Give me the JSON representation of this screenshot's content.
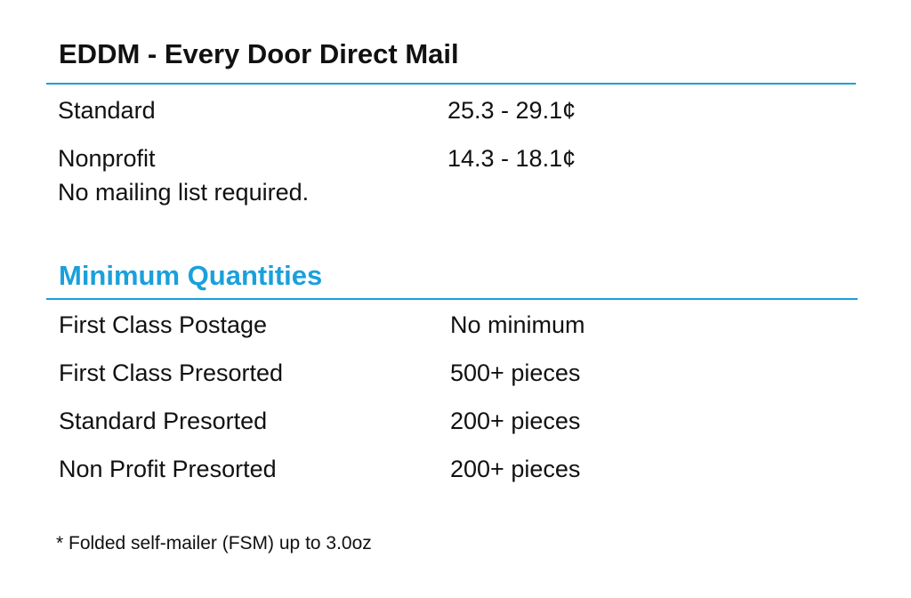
{
  "eddm": {
    "title": "EDDM - Every Door Direct Mail",
    "rows": [
      {
        "label": "Standard",
        "value": "25.3 - 29.1¢"
      },
      {
        "label": "Nonprofit",
        "value": "14.3 - 18.1¢"
      }
    ],
    "note": "No mailing list required."
  },
  "minimums": {
    "title": "Minimum Quantities",
    "accent_color": "#1aa0dc",
    "rows": [
      {
        "label": "First Class Postage",
        "value": "No minimum"
      },
      {
        "label": "First Class Presorted",
        "value": "500+ pieces"
      },
      {
        "label": "Standard Presorted",
        "value": "200+ pieces"
      },
      {
        "label": "Non Profit Presorted",
        "value": "200+ pieces"
      }
    ]
  },
  "footnote": "* Folded self-mailer (FSM) up to 3.0oz"
}
